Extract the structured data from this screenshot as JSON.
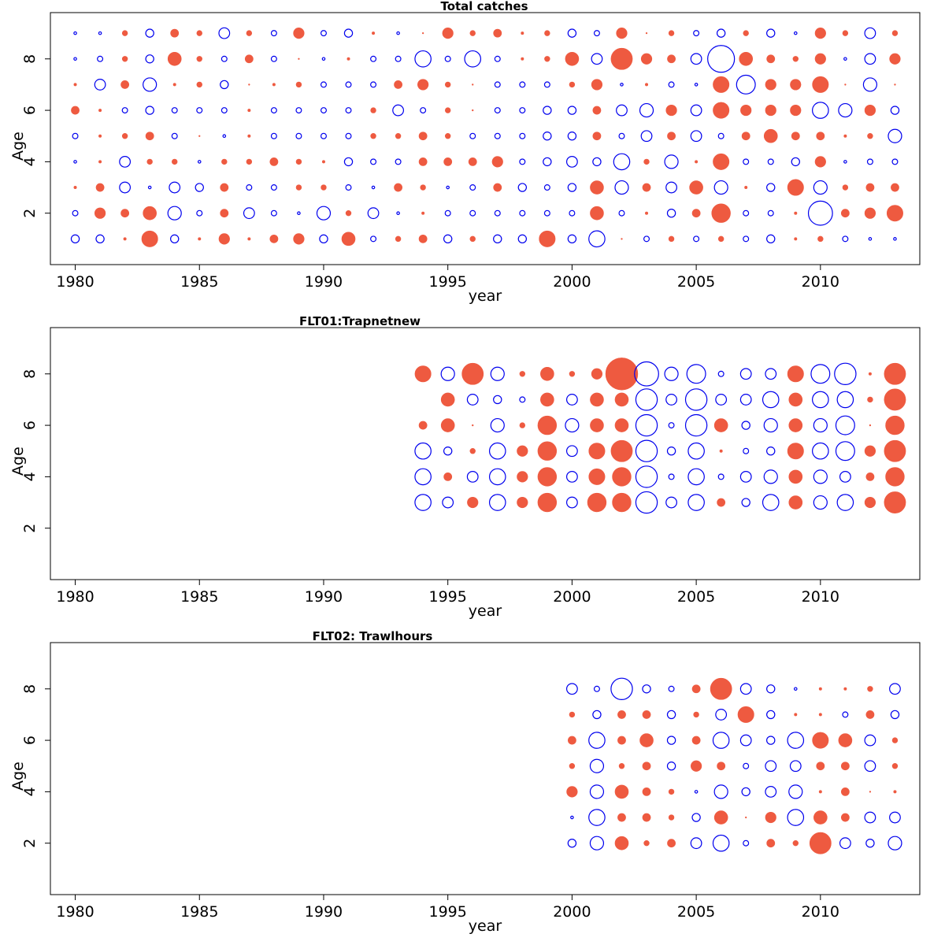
{
  "chart_data": [
    {
      "type": "scatter",
      "subtype": "bubble",
      "title": "Total catches",
      "xlabel": "year",
      "ylabel": "Age",
      "xlim": [
        1979,
        2014
      ],
      "ylim": [
        0,
        9.8
      ],
      "xticks": [
        1980,
        1985,
        1990,
        1995,
        2000,
        2005,
        2010
      ],
      "yticks": [
        2,
        4,
        6,
        8
      ],
      "legend": "none",
      "colors": {
        "positive": "#ee5a40",
        "negative": "#0000ee"
      },
      "x": [
        1980,
        1981,
        1982,
        1983,
        1984,
        1985,
        1986,
        1987,
        1988,
        1989,
        1990,
        1991,
        1992,
        1993,
        1994,
        1995,
        1996,
        1997,
        1998,
        1999,
        2000,
        2001,
        2002,
        2003,
        2004,
        2005,
        2006,
        2007,
        2008,
        2009,
        2010,
        2011,
        2012,
        2013
      ],
      "series": [
        {
          "age": 1,
          "values": [
            -0.3,
            -0.3,
            0.1,
            0.6,
            -0.3,
            0.1,
            0.4,
            0.1,
            0.3,
            0.4,
            -0.3,
            0.5,
            -0.2,
            0.2,
            0.3,
            -0.3,
            0.2,
            -0.3,
            -0.3,
            0.6,
            -0.3,
            -0.6,
            0.05,
            -0.2,
            0.2,
            -0.2,
            0.2,
            -0.2,
            -0.3,
            0.1,
            0.2,
            -0.2,
            -0.1,
            -0.1
          ]
        },
        {
          "age": 2,
          "values": [
            -0.2,
            0.4,
            0.3,
            0.5,
            -0.5,
            -0.2,
            0.3,
            -0.4,
            -0.2,
            -0.1,
            -0.5,
            0.2,
            -0.4,
            -0.1,
            0.1,
            -0.2,
            -0.2,
            -0.2,
            -0.2,
            -0.2,
            -0.2,
            0.5,
            -0.2,
            0.1,
            -0.3,
            0.3,
            0.7,
            -0.2,
            -0.2,
            0.1,
            -0.9,
            0.3,
            0.4,
            0.6
          ]
        },
        {
          "age": 3,
          "values": [
            0.1,
            0.3,
            -0.4,
            -0.1,
            -0.4,
            -0.3,
            0.3,
            -0.2,
            -0.2,
            0.2,
            0.2,
            -0.2,
            -0.1,
            0.3,
            0.2,
            -0.1,
            -0.2,
            0.3,
            -0.3,
            -0.2,
            -0.3,
            0.5,
            -0.5,
            0.3,
            -0.4,
            0.5,
            -0.5,
            0.1,
            -0.3,
            0.6,
            -0.5,
            0.2,
            0.3,
            0.3
          ]
        },
        {
          "age": 4,
          "values": [
            -0.1,
            0.1,
            -0.4,
            0.2,
            0.2,
            -0.1,
            0.2,
            0.2,
            0.3,
            0.2,
            0.1,
            -0.3,
            -0.2,
            -0.2,
            0.3,
            0.3,
            0.3,
            0.4,
            -0.2,
            -0.3,
            -0.4,
            -0.3,
            -0.6,
            0.2,
            -0.5,
            0.1,
            0.6,
            -0.2,
            -0.2,
            -0.3,
            0.4,
            -0.1,
            -0.2,
            -0.2
          ]
        },
        {
          "age": 5,
          "values": [
            -0.2,
            0.1,
            0.2,
            0.3,
            -0.2,
            0.05,
            -0.1,
            0.1,
            -0.2,
            -0.2,
            -0.2,
            -0.2,
            0.2,
            0.2,
            0.3,
            0.2,
            -0.2,
            -0.2,
            -0.2,
            -0.3,
            -0.3,
            0.3,
            -0.2,
            -0.4,
            0.3,
            -0.4,
            -0.2,
            0.3,
            0.5,
            0.3,
            0.3,
            0.1,
            0.2,
            -0.5
          ]
        },
        {
          "age": 6,
          "values": [
            0.3,
            0.1,
            -0.2,
            -0.3,
            -0.2,
            -0.2,
            -0.2,
            0.1,
            -0.2,
            -0.2,
            -0.2,
            -0.2,
            0.2,
            -0.4,
            -0.2,
            0.2,
            0.05,
            -0.2,
            -0.2,
            -0.3,
            -0.3,
            0.3,
            -0.4,
            -0.5,
            0.4,
            -0.4,
            0.6,
            0.4,
            0.4,
            0.4,
            -0.6,
            -0.5,
            0.4,
            -0.3
          ]
        },
        {
          "age": 7,
          "values": [
            0.1,
            -0.4,
            0.3,
            -0.5,
            0.1,
            0.2,
            -0.3,
            0.05,
            0.1,
            0.2,
            -0.2,
            -0.2,
            -0.2,
            0.3,
            0.4,
            0.2,
            0.05,
            -0.2,
            -0.2,
            -0.2,
            0.2,
            0.4,
            -0.1,
            0.1,
            -0.2,
            -0.1,
            0.6,
            -0.7,
            0.4,
            0.4,
            0.6,
            0.05,
            -0.5,
            0.05
          ]
        },
        {
          "age": 8,
          "values": [
            -0.1,
            -0.2,
            0.2,
            -0.3,
            0.5,
            0.2,
            -0.2,
            0.3,
            -0.2,
            0.05,
            -0.1,
            0.1,
            -0.2,
            -0.2,
            -0.6,
            -0.2,
            -0.6,
            -0.2,
            0.1,
            0.2,
            0.5,
            -0.4,
            0.8,
            0.4,
            0.3,
            -0.4,
            -1.0,
            0.5,
            0.3,
            0.2,
            0.4,
            -0.1,
            -0.4,
            0.4
          ]
        },
        {
          "age": 9,
          "values": [
            -0.1,
            -0.1,
            0.2,
            -0.3,
            0.3,
            0.2,
            -0.4,
            0.2,
            -0.2,
            0.4,
            -0.2,
            -0.3,
            0.1,
            -0.1,
            0.05,
            0.4,
            0.2,
            0.3,
            0.1,
            0.2,
            -0.3,
            -0.2,
            0.4,
            0.05,
            0.2,
            -0.2,
            -0.3,
            0.2,
            -0.3,
            -0.1,
            0.4,
            0.2,
            -0.4,
            0.2
          ]
        }
      ]
    },
    {
      "type": "scatter",
      "subtype": "bubble",
      "title": "FLT01:Trapnetnew",
      "xlabel": "year",
      "ylabel": "Age",
      "xlim": [
        1979,
        2014
      ],
      "ylim": [
        0,
        9.8
      ],
      "xticks": [
        1980,
        1985,
        1990,
        1995,
        2000,
        2005,
        2010
      ],
      "yticks": [
        2,
        4,
        6,
        8
      ],
      "legend": "none",
      "colors": {
        "positive": "#ee5a40",
        "negative": "#0000ee"
      },
      "x": [
        1994,
        1995,
        1996,
        1997,
        1998,
        1999,
        2000,
        2001,
        2002,
        2003,
        2004,
        2005,
        2006,
        2007,
        2008,
        2009,
        2010,
        2011,
        2012,
        2013
      ],
      "series": [
        {
          "age": 3,
          "values": [
            -0.6,
            -0.4,
            0.4,
            -0.6,
            0.4,
            0.7,
            -0.4,
            0.7,
            0.7,
            -0.8,
            -0.4,
            -0.6,
            0.3,
            -0.3,
            -0.6,
            0.5,
            -0.5,
            -0.6,
            0.4,
            0.8
          ]
        },
        {
          "age": 4,
          "values": [
            -0.6,
            0.3,
            -0.4,
            -0.6,
            0.4,
            0.7,
            -0.4,
            0.6,
            0.7,
            -0.8,
            -0.2,
            -0.6,
            -0.2,
            -0.4,
            -0.5,
            0.5,
            -0.5,
            -0.4,
            0.3,
            0.7
          ]
        },
        {
          "age": 5,
          "values": [
            -0.6,
            -0.3,
            0.2,
            -0.6,
            0.4,
            0.7,
            -0.4,
            0.6,
            0.8,
            -0.8,
            -0.3,
            -0.6,
            0.1,
            -0.2,
            -0.3,
            0.6,
            -0.6,
            -0.7,
            0.4,
            0.8
          ]
        },
        {
          "age": 6,
          "values": [
            0.3,
            0.5,
            0.05,
            -0.5,
            0.2,
            0.7,
            -0.5,
            0.5,
            0.5,
            -0.8,
            -0.2,
            -0.8,
            0.5,
            -0.3,
            -0.5,
            0.5,
            -0.5,
            -0.7,
            0.05,
            0.7
          ]
        },
        {
          "age": 7,
          "values": [
            null,
            0.5,
            -0.4,
            -0.3,
            -0.2,
            0.5,
            -0.4,
            0.5,
            0.5,
            -0.8,
            -0.4,
            -0.8,
            -0.4,
            -0.4,
            -0.6,
            0.5,
            -0.6,
            -0.6,
            0.2,
            0.8
          ]
        },
        {
          "age": 8,
          "values": [
            0.6,
            -0.5,
            0.8,
            -0.5,
            0.2,
            0.5,
            0.2,
            0.4,
            1.2,
            -0.9,
            -0.5,
            -0.7,
            -0.2,
            -0.4,
            -0.4,
            0.6,
            -0.7,
            -0.8,
            0.1,
            0.8
          ]
        }
      ]
    },
    {
      "type": "scatter",
      "subtype": "bubble",
      "title": "FLT02:       Trawlhours",
      "xlabel": "year",
      "ylabel": "Age",
      "xlim": [
        1979,
        2014
      ],
      "ylim": [
        0,
        9.8
      ],
      "xticks": [
        1980,
        1985,
        1990,
        1995,
        2000,
        2005,
        2010
      ],
      "yticks": [
        2,
        4,
        6,
        8
      ],
      "legend": "none",
      "colors": {
        "positive": "#ee5a40",
        "negative": "#0000ee"
      },
      "x": [
        2000,
        2001,
        2002,
        2003,
        2004,
        2005,
        2006,
        2007,
        2008,
        2009,
        2010,
        2011,
        2012,
        2013
      ],
      "series": [
        {
          "age": 2,
          "values": [
            -0.3,
            -0.5,
            0.5,
            0.2,
            0.3,
            -0.4,
            -0.6,
            -0.2,
            0.3,
            0.2,
            0.8,
            -0.4,
            -0.3,
            -0.5
          ]
        },
        {
          "age": 3,
          "values": [
            -0.1,
            -0.6,
            0.3,
            0.3,
            0.2,
            -0.3,
            0.5,
            0.05,
            0.4,
            -0.6,
            0.5,
            0.3,
            -0.4,
            -0.4
          ]
        },
        {
          "age": 4,
          "values": [
            0.4,
            -0.5,
            0.5,
            0.3,
            0.2,
            -0.1,
            -0.5,
            -0.3,
            -0.4,
            -0.5,
            0.1,
            0.3,
            0.05,
            0.1
          ]
        },
        {
          "age": 5,
          "values": [
            0.2,
            -0.5,
            0.2,
            0.3,
            -0.3,
            0.4,
            0.3,
            -0.2,
            -0.4,
            -0.4,
            0.3,
            0.3,
            -0.4,
            0.2
          ]
        },
        {
          "age": 6,
          "values": [
            0.3,
            -0.6,
            0.3,
            0.5,
            -0.3,
            0.3,
            -0.6,
            -0.4,
            -0.3,
            -0.6,
            0.6,
            0.5,
            -0.4,
            0.2
          ]
        },
        {
          "age": 7,
          "values": [
            0.2,
            -0.3,
            0.3,
            0.3,
            -0.3,
            0.2,
            -0.4,
            0.6,
            -0.3,
            0.1,
            0.1,
            -0.2,
            0.3,
            -0.3
          ]
        },
        {
          "age": 8,
          "values": [
            -0.4,
            -0.2,
            -0.8,
            -0.3,
            -0.2,
            0.3,
            0.8,
            -0.4,
            -0.3,
            -0.1,
            0.1,
            0.1,
            0.2,
            -0.4
          ]
        }
      ]
    }
  ]
}
